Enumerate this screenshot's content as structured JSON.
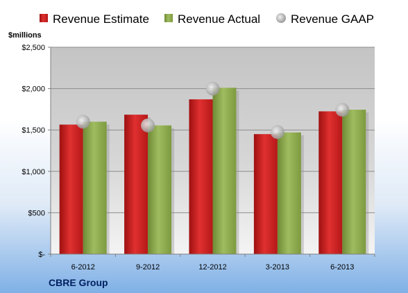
{
  "company_label": "CBRE Group",
  "unit_label": "$millions",
  "colors": {
    "estimate": "#cc1f1f",
    "actual": "#8aa84a",
    "gaap": "#b4b4b4",
    "company_text": "#002060"
  },
  "chart_data": {
    "type": "bar",
    "title": "",
    "xlabel": "",
    "ylabel": "$millions",
    "categories": [
      "6-2012",
      "9-2012",
      "12-2012",
      "3-2013",
      "6-2013"
    ],
    "ylim": [
      0,
      2500
    ],
    "y_ticks": [
      0,
      500,
      1000,
      1500,
      2000,
      2500
    ],
    "y_tick_labels": [
      "$-",
      "$500",
      "$1,000",
      "$1,500",
      "$2,000",
      "$2,500"
    ],
    "grid": true,
    "legend_position": "top",
    "series": [
      {
        "name": "Revenue Estimate",
        "kind": "bar",
        "values": [
          1565,
          1685,
          1870,
          1450,
          1725
        ]
      },
      {
        "name": "Revenue Actual",
        "kind": "bar",
        "values": [
          1600,
          1555,
          2010,
          1470,
          1745
        ]
      },
      {
        "name": "Revenue GAAP",
        "kind": "marker",
        "values": [
          1600,
          1555,
          2000,
          1475,
          1745
        ]
      }
    ]
  }
}
